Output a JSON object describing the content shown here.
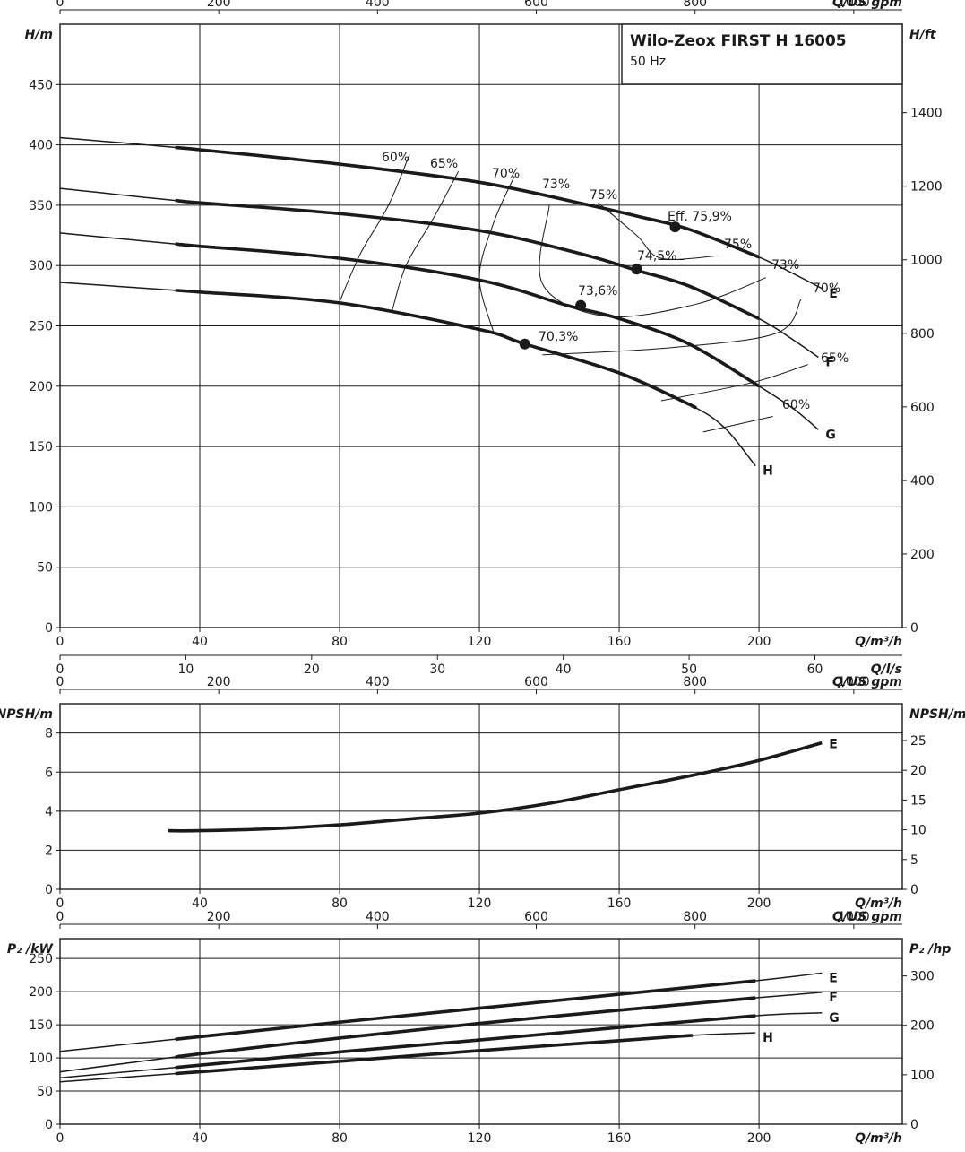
{
  "title_box": {
    "title": "Wilo-Zeox FIRST H 16005",
    "subtitle": "50 Hz"
  },
  "axes": {
    "q_m3h_label": "Q/m³/h",
    "q_ls_label": "Q/l/s",
    "q_gpm_label": "Q/US gpm",
    "h_m_label": "H/m",
    "h_ft_label": "H/ft",
    "npsh_left_label": "NPSH/m",
    "npsh_right_label": "NPSH/m",
    "p2_left_label": "P₂ /kW",
    "p2_right_label": "P₂ /hp"
  },
  "chart_data": [
    {
      "type": "line",
      "panel": "head",
      "x_unit": "m³/h",
      "xlim": [
        0,
        241
      ],
      "ylim": [
        0,
        500
      ],
      "x_ticks": [
        0,
        40,
        80,
        120,
        160,
        200
      ],
      "y_ticks": [
        0,
        50,
        100,
        150,
        200,
        250,
        300,
        350,
        400,
        450
      ],
      "secondary_x_ls_ticks": [
        0,
        10,
        20,
        30,
        40,
        50,
        60
      ],
      "secondary_x_gpm_ticks": [
        0,
        200,
        400,
        600,
        800,
        1000
      ],
      "secondary_y_ft_ticks": [
        0,
        200,
        400,
        600,
        800,
        1000,
        1200,
        1400
      ],
      "grid": true,
      "series": [
        {
          "name": "E",
          "x": [
            0,
            40,
            80,
            120,
            150,
            165,
            180,
            200,
            210,
            218
          ],
          "y": [
            406,
            396,
            384,
            369,
            351,
            341,
            330,
            307,
            293,
            281
          ],
          "bold_range": [
            33,
            200
          ]
        },
        {
          "name": "F",
          "x": [
            0,
            40,
            80,
            120,
            150,
            165,
            180,
            200,
            210,
            217
          ],
          "y": [
            364,
            352,
            343,
            329,
            309,
            296,
            283,
            256,
            238,
            224
          ],
          "bold_range": [
            33,
            200
          ]
        },
        {
          "name": "G",
          "x": [
            0,
            40,
            80,
            120,
            145,
            160,
            180,
            200,
            210,
            217
          ],
          "y": [
            327,
            316,
            306,
            288,
            267,
            256,
            235,
            200,
            181,
            164
          ],
          "bold_range": [
            33,
            200
          ]
        },
        {
          "name": "H",
          "x": [
            0,
            40,
            80,
            120,
            133,
            160,
            180,
            190,
            199
          ],
          "y": [
            286,
            278,
            269,
            247,
            235,
            211,
            185,
            166,
            134
          ],
          "bold_range": [
            33,
            181
          ]
        }
      ],
      "best_efficiency_points": [
        {
          "curve": "E",
          "x": 176,
          "y": 332,
          "label": "Eff. 75,9%"
        },
        {
          "curve": "F",
          "x": 165,
          "y": 297,
          "label": "74,5%"
        },
        {
          "curve": "G",
          "x": 149,
          "y": 267,
          "label": "73,6%"
        },
        {
          "curve": "H",
          "x": 133,
          "y": 235,
          "label": "70,3%"
        }
      ],
      "efficiency_contours": [
        {
          "label": "60%",
          "x": [
            80,
            86,
            94,
            100
          ],
          "y": [
            270,
            310,
            350,
            392
          ]
        },
        {
          "label": "65%",
          "x": [
            95,
            99,
            107,
            114
          ],
          "y": [
            262,
            300,
            340,
            378
          ]
        },
        {
          "label": "70%",
          "x": [
            124,
            120,
            124,
            130
          ],
          "y": [
            245,
            290,
            335,
            374
          ]
        },
        {
          "label": "73%",
          "x": [
            140,
            138,
            156,
            182,
            202
          ],
          "y": [
            350,
            285,
            258,
            268,
            290
          ]
        },
        {
          "label": "75%",
          "x": [
            154,
            165,
            172,
            188
          ],
          "y": [
            352,
            325,
            306,
            308
          ]
        },
        {
          "label": "74,5%",
          "x": [],
          "y": []
        },
        {
          "label": "70%",
          "x": [
            138,
            175,
            205,
            212
          ],
          "y": [
            226,
            232,
            244,
            272
          ]
        },
        {
          "label": "65%",
          "x": [
            172,
            198,
            214
          ],
          "y": [
            188,
            203,
            218
          ]
        },
        {
          "label": "60%",
          "x": [
            184,
            204
          ],
          "y": [
            162,
            175
          ]
        }
      ],
      "contour_labels": [
        "60%",
        "65%",
        "70%",
        "73%",
        "75%",
        "Eff. 75,9%",
        "74,5%",
        "75%",
        "73%",
        "70%",
        "73,6%",
        "65%",
        "70,3%",
        "60%"
      ]
    },
    {
      "type": "line",
      "panel": "npsh",
      "x_unit": "m³/h",
      "xlim": [
        0,
        241
      ],
      "ylim": [
        0,
        9.5
      ],
      "x_ticks": [
        0,
        40,
        80,
        120,
        160,
        200
      ],
      "y_ticks": [
        0,
        2,
        4,
        6,
        8
      ],
      "secondary_y_ft_ticks": [
        0,
        5,
        10,
        15,
        20,
        25
      ],
      "grid": true,
      "series": [
        {
          "name": "E",
          "x": [
            31,
            40,
            60,
            80,
            100,
            120,
            140,
            160,
            180,
            200,
            218
          ],
          "y": [
            3.0,
            3.0,
            3.1,
            3.3,
            3.6,
            3.9,
            4.4,
            5.1,
            5.8,
            6.6,
            7.5
          ]
        }
      ]
    },
    {
      "type": "line",
      "panel": "power",
      "x_unit": "m³/h",
      "xlim": [
        0,
        241
      ],
      "ylim": [
        0,
        280
      ],
      "x_ticks": [
        0,
        40,
        80,
        120,
        160,
        200
      ],
      "y_ticks": [
        0,
        50,
        100,
        150,
        200,
        250
      ],
      "secondary_y_hp_ticks": [
        0,
        100,
        200,
        300
      ],
      "grid": true,
      "series": [
        {
          "name": "E",
          "x": [
            0,
            40,
            80,
            120,
            160,
            200,
            218
          ],
          "y": [
            110,
            132,
            154,
            175,
            196,
            217,
            228
          ],
          "bold_range": [
            33,
            199
          ]
        },
        {
          "name": "F",
          "x": [
            0,
            40,
            80,
            120,
            160,
            200,
            218
          ],
          "y": [
            79,
            106,
            130,
            152,
            172,
            191,
            199
          ],
          "bold_range": [
            33,
            199
          ]
        },
        {
          "name": "G",
          "x": [
            0,
            40,
            80,
            120,
            160,
            200,
            218
          ],
          "y": [
            70,
            89,
            109,
            127,
            146,
            164,
            168
          ],
          "bold_range": [
            33,
            199
          ]
        },
        {
          "name": "H",
          "x": [
            0,
            40,
            80,
            120,
            160,
            181,
            199
          ],
          "y": [
            64,
            79,
            95,
            111,
            126,
            134,
            138
          ],
          "bold_range": [
            33,
            181
          ]
        }
      ]
    }
  ],
  "curve_labels": {
    "E": "E",
    "F": "F",
    "G": "G",
    "H": "H"
  }
}
